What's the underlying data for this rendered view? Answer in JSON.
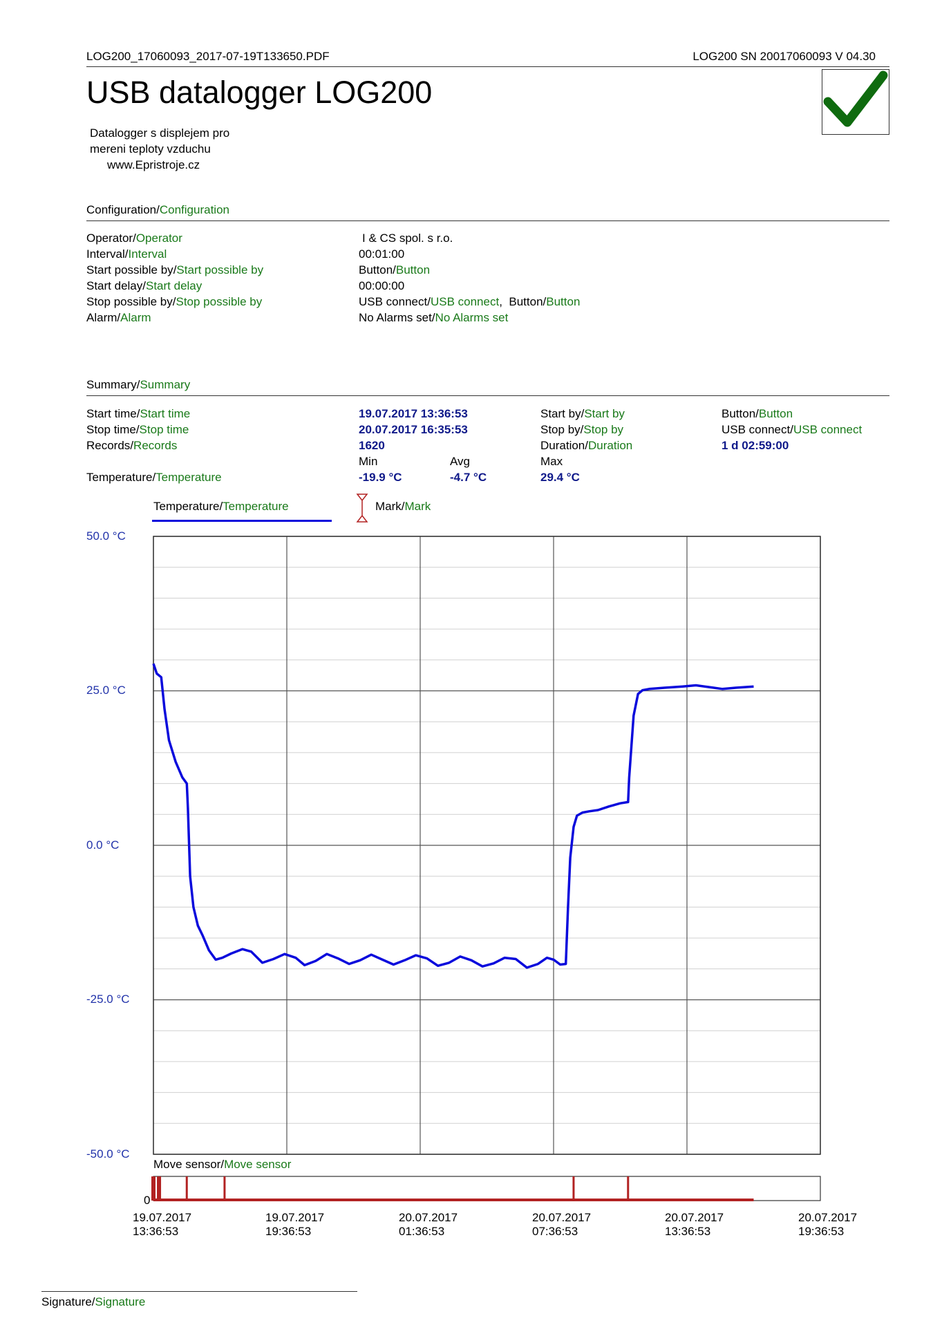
{
  "header": {
    "filename": "LOG200_17060093_2017-07-19T133650.PDF",
    "device_info": "LOG200  SN 20017060093  V 04.30",
    "title": "USB datalogger LOG200",
    "description_line1": "Datalogger s displejem pro",
    "description_line2": "mereni teploty vzduchu",
    "website": "www.Epristroje.cz",
    "status_icon": "green-check-icon"
  },
  "configuration": {
    "heading": "Configuration",
    "heading_alt": "Configuration",
    "rows": [
      {
        "label": "Operator",
        "label_alt": "Operator",
        "value": "I & CS spol. s r.o.",
        "value_alt": ""
      },
      {
        "label": "Interval",
        "label_alt": "Interval",
        "value": "00:01:00",
        "value_alt": ""
      },
      {
        "label": "Start possible by",
        "label_alt": "Start possible by",
        "value": "Button",
        "value_alt": "Button"
      },
      {
        "label": "Start delay",
        "label_alt": "Start delay",
        "value": "00:00:00",
        "value_alt": ""
      },
      {
        "label": "Stop possible by",
        "label_alt": "Stop possible by",
        "value": "USB connect",
        "value_alt": "USB connect",
        "value2": "Button",
        "value2_alt": "Button"
      },
      {
        "label": "Alarm",
        "label_alt": "Alarm",
        "value": "No Alarms set",
        "value_alt": "No Alarms set"
      }
    ]
  },
  "summary": {
    "heading": "Summary",
    "heading_alt": "Summary",
    "start_time": {
      "label": "Start time",
      "label_alt": "Start time",
      "value": "19.07.2017 13:36:53"
    },
    "stop_time": {
      "label": "Stop time",
      "label_alt": "Stop time",
      "value": "20.07.2017 16:35:53"
    },
    "records": {
      "label": "Records",
      "label_alt": "Records",
      "value": "1620"
    },
    "start_by": {
      "label": "Start by",
      "label_alt": "Start by",
      "value": "Button",
      "value_alt": "Button"
    },
    "stop_by": {
      "label": "Stop by",
      "label_alt": "Stop by",
      "value": "USB connect",
      "value_alt": "USB connect"
    },
    "duration": {
      "label": "Duration",
      "label_alt": "Duration",
      "value": "1 d 02:59:00"
    },
    "temperature": {
      "label": "Temperature",
      "label_alt": "Temperature",
      "min_label": "Min",
      "avg_label": "Avg",
      "max_label": "Max",
      "min": "-19.9 °C",
      "avg": "-4.7 °C",
      "max": "29.4 °C"
    }
  },
  "legend": {
    "series_label": "Temperature",
    "series_label_alt": "Temperature",
    "mark_label": "Mark",
    "mark_label_alt": "Mark"
  },
  "move_sensor": {
    "label": "Move sensor",
    "label_alt": "Move sensor",
    "zero_label": "0"
  },
  "signature": {
    "label": "Signature",
    "label_alt": "Signature"
  },
  "colors": {
    "series": "#0a0adc",
    "accent_green": "#1a7a1a",
    "mark": "#b22222",
    "value_blue": "#101a8a",
    "check": "#0f6b0f"
  },
  "chart_data": {
    "type": "line",
    "title": "",
    "xlabel": "",
    "ylabel": "",
    "ylim": [
      -50,
      50
    ],
    "y_ticks": [
      "50.0 °C",
      "25.0 °C",
      "0.0 °C",
      "-25.0 °C",
      "-50.0 °C"
    ],
    "y_tick_values": [
      50,
      25,
      0,
      -25,
      -50
    ],
    "x_range_hours": [
      0,
      30
    ],
    "x_ticks": [
      {
        "date": "19.07.2017",
        "time": "13:36:53",
        "hours": 0
      },
      {
        "date": "19.07.2017",
        "time": "19:36:53",
        "hours": 6
      },
      {
        "date": "20.07.2017",
        "time": "01:36:53",
        "hours": 12
      },
      {
        "date": "20.07.2017",
        "time": "07:36:53",
        "hours": 18
      },
      {
        "date": "20.07.2017",
        "time": "13:36:53",
        "hours": 24
      },
      {
        "date": "20.07.2017",
        "time": "19:36:53",
        "hours": 30
      }
    ],
    "grid": true,
    "legend_position": "top",
    "series": [
      {
        "name": "Temperature",
        "x_hours": [
          0,
          0.15,
          0.35,
          0.5,
          0.7,
          1.0,
          1.3,
          1.5,
          1.55,
          1.65,
          1.8,
          2.0,
          2.2,
          2.5,
          2.8,
          3.1,
          3.5,
          4.0,
          4.4,
          4.9,
          5.4,
          5.9,
          6.4,
          6.8,
          7.3,
          7.8,
          8.3,
          8.8,
          9.3,
          9.8,
          10.3,
          10.8,
          11.3,
          11.8,
          12.3,
          12.8,
          13.3,
          13.8,
          14.3,
          14.8,
          15.3,
          15.8,
          16.3,
          16.8,
          17.3,
          17.7,
          18.0,
          18.3,
          18.55,
          18.65,
          18.75,
          18.9,
          19.05,
          19.3,
          19.6,
          20.0,
          20.5,
          21.0,
          21.35,
          21.4,
          21.6,
          21.8,
          22.0,
          22.3,
          23.0,
          23.8,
          24.4,
          25.0,
          25.6,
          26.2,
          27.0
        ],
        "values": [
          29.4,
          27.8,
          27.2,
          22.0,
          17.0,
          13.5,
          11.0,
          10.0,
          6.0,
          -5.0,
          -10.0,
          -13.0,
          -14.5,
          -17.0,
          -18.5,
          -18.2,
          -17.5,
          -16.8,
          -17.2,
          -19.0,
          -18.4,
          -17.6,
          -18.2,
          -19.4,
          -18.7,
          -17.6,
          -18.3,
          -19.2,
          -18.6,
          -17.7,
          -18.5,
          -19.3,
          -18.6,
          -17.8,
          -18.3,
          -19.5,
          -19.0,
          -18.0,
          -18.6,
          -19.6,
          -19.1,
          -18.2,
          -18.4,
          -19.8,
          -19.2,
          -18.2,
          -18.5,
          -19.3,
          -19.2,
          -10.0,
          -2.0,
          3.0,
          4.8,
          5.3,
          5.5,
          5.7,
          6.3,
          6.8,
          7.0,
          11.0,
          21.0,
          24.5,
          25.1,
          25.3,
          25.5,
          25.7,
          25.9,
          25.6,
          25.3,
          25.5,
          25.7
        ]
      }
    ],
    "move_sensor_marks_hours": [
      0,
      0.25,
      1.5,
      3.2,
      18.9,
      21.35
    ],
    "move_sensor_end_hours": 27.0
  }
}
